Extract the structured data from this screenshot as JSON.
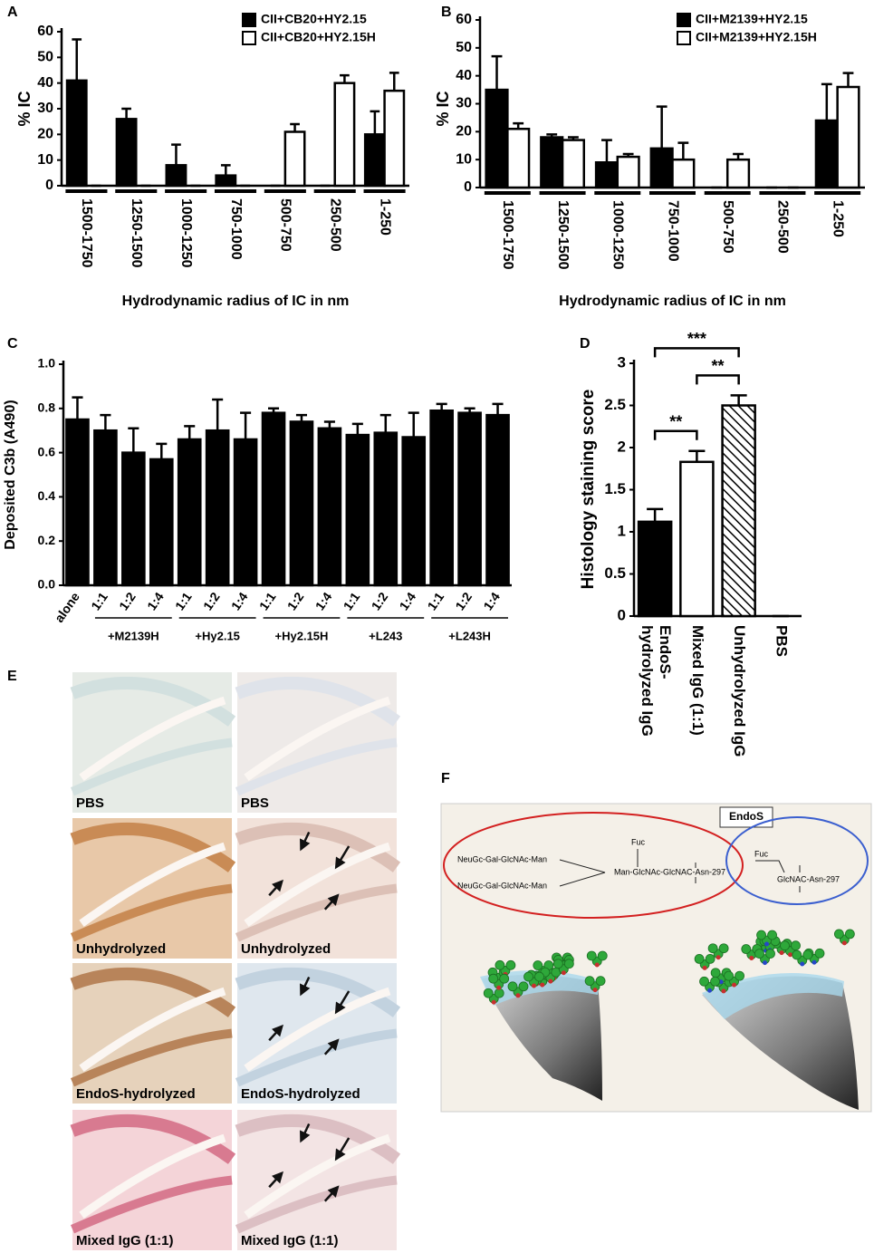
{
  "chart_data": [
    {
      "type": "bar",
      "panel": "A",
      "ylabel": "% IC",
      "xlabel": "Hydrodynamic radius of IC in nm",
      "categories": [
        "1500-1750",
        "1250-1500",
        "1000-1250",
        "750-1000",
        "500-750",
        "250-500",
        "1-250"
      ],
      "series": [
        {
          "name": "CII+CB20+HY2.15",
          "color": "#000000",
          "values": [
            41,
            26,
            8,
            4,
            0,
            0,
            20
          ],
          "errors": [
            16,
            4,
            8,
            4,
            0,
            0,
            9
          ]
        },
        {
          "name": "CII+CB20+HY2.15H",
          "color": "#ffffff",
          "values": [
            0,
            0,
            0,
            0,
            21,
            40,
            37
          ],
          "errors": [
            0,
            0,
            0,
            0,
            3,
            3,
            7
          ]
        }
      ],
      "ylim": [
        0,
        60
      ],
      "yticks": [
        0,
        10,
        20,
        30,
        40,
        50,
        60
      ],
      "legend": "top-right"
    },
    {
      "type": "bar",
      "panel": "B",
      "ylabel": "% IC",
      "xlabel": "Hydrodynamic radius of IC in nm",
      "categories": [
        "1500-1750",
        "1250-1500",
        "1000-1250",
        "750-1000",
        "500-750",
        "250-500",
        "1-250"
      ],
      "series": [
        {
          "name": "CII+M2139+HY2.15",
          "color": "#000000",
          "values": [
            35,
            18,
            9,
            14,
            0,
            0,
            24
          ],
          "errors": [
            12,
            1,
            8,
            15,
            0,
            0,
            13
          ]
        },
        {
          "name": "CII+M2139+HY2.15H",
          "color": "#ffffff",
          "values": [
            21,
            17,
            11,
            10,
            10,
            0,
            36
          ],
          "errors": [
            2,
            1,
            1,
            6,
            2,
            0,
            5
          ]
        }
      ],
      "ylim": [
        0,
        60
      ],
      "yticks": [
        0,
        10,
        20,
        30,
        40,
        50,
        60
      ],
      "legend": "top-right"
    },
    {
      "type": "bar",
      "panel": "C",
      "ylabel": "Deposited C3b (A490)",
      "categories": [
        "alone",
        "1:1",
        "1:2",
        "1:4",
        "1:1",
        "1:2",
        "1:4",
        "1:1",
        "1:2",
        "1:4",
        "1:1",
        "1:2",
        "1:4",
        "1:1",
        "1:2",
        "1:4"
      ],
      "groups": [
        "+M2139H",
        "+Hy2.15",
        "+Hy2.15H",
        "+L243",
        "+L243H"
      ],
      "values": [
        0.75,
        0.7,
        0.6,
        0.57,
        0.66,
        0.7,
        0.66,
        0.78,
        0.74,
        0.71,
        0.68,
        0.69,
        0.67,
        0.79,
        0.78,
        0.77
      ],
      "errors": [
        0.1,
        0.07,
        0.11,
        0.07,
        0.06,
        0.14,
        0.12,
        0.02,
        0.03,
        0.03,
        0.05,
        0.08,
        0.11,
        0.03,
        0.02,
        0.05
      ],
      "color": "#000000",
      "ylim": [
        0,
        1
      ],
      "yticks": [
        {
          "value": 0,
          "label": "0.0"
        },
        0.2,
        0.4,
        0.6,
        0.8,
        {
          "value": 1,
          "label": "1.0"
        }
      ]
    },
    {
      "type": "bar",
      "panel": "D",
      "ylabel": "Histology staining score",
      "categories": [
        "EndoS-hydrolyzed IgG",
        "Mixed IgG (1:1)",
        "Unhydrolyzed IgG",
        "PBS"
      ],
      "values": [
        1.12,
        1.83,
        2.5,
        0
      ],
      "errors": [
        0.15,
        0.13,
        0.12,
        0
      ],
      "colors": [
        "#000000",
        "#ffffff",
        "#ffffff",
        "#ffffff"
      ],
      "hatched": [
        false,
        false,
        true,
        false
      ],
      "annotations": [
        {
          "text": "**",
          "from": 0,
          "to": 1
        },
        {
          "text": "**",
          "from": 1,
          "to": 2
        },
        {
          "text": "***",
          "from": 0,
          "to": 2
        }
      ],
      "ylim": [
        0,
        3
      ],
      "yticks": [
        0,
        0.5,
        1,
        1.5,
        2,
        2.5,
        3
      ]
    }
  ],
  "panel_e": {
    "label": "E",
    "captions": [
      "PBS",
      "PBS",
      "Unhydrolyzed",
      "Unhydrolyzed",
      "EndoS-hydrolyzed",
      "EndoS-hydrolyzed",
      "Mixed IgG (1:1)",
      "Mixed IgG (1:1)"
    ]
  },
  "panel_f": {
    "label": "F",
    "title": "EndoS",
    "left_glycan": [
      "Fuc",
      "NeuGc-Gal-GlcNAc-Man",
      "NeuGc-Gal-GlcNAc-Man",
      "Man-GlcNAc-GlcNAC-Asn-297"
    ],
    "right_glycan": [
      "Fuc",
      "GlcNAC-Asn-297"
    ]
  }
}
